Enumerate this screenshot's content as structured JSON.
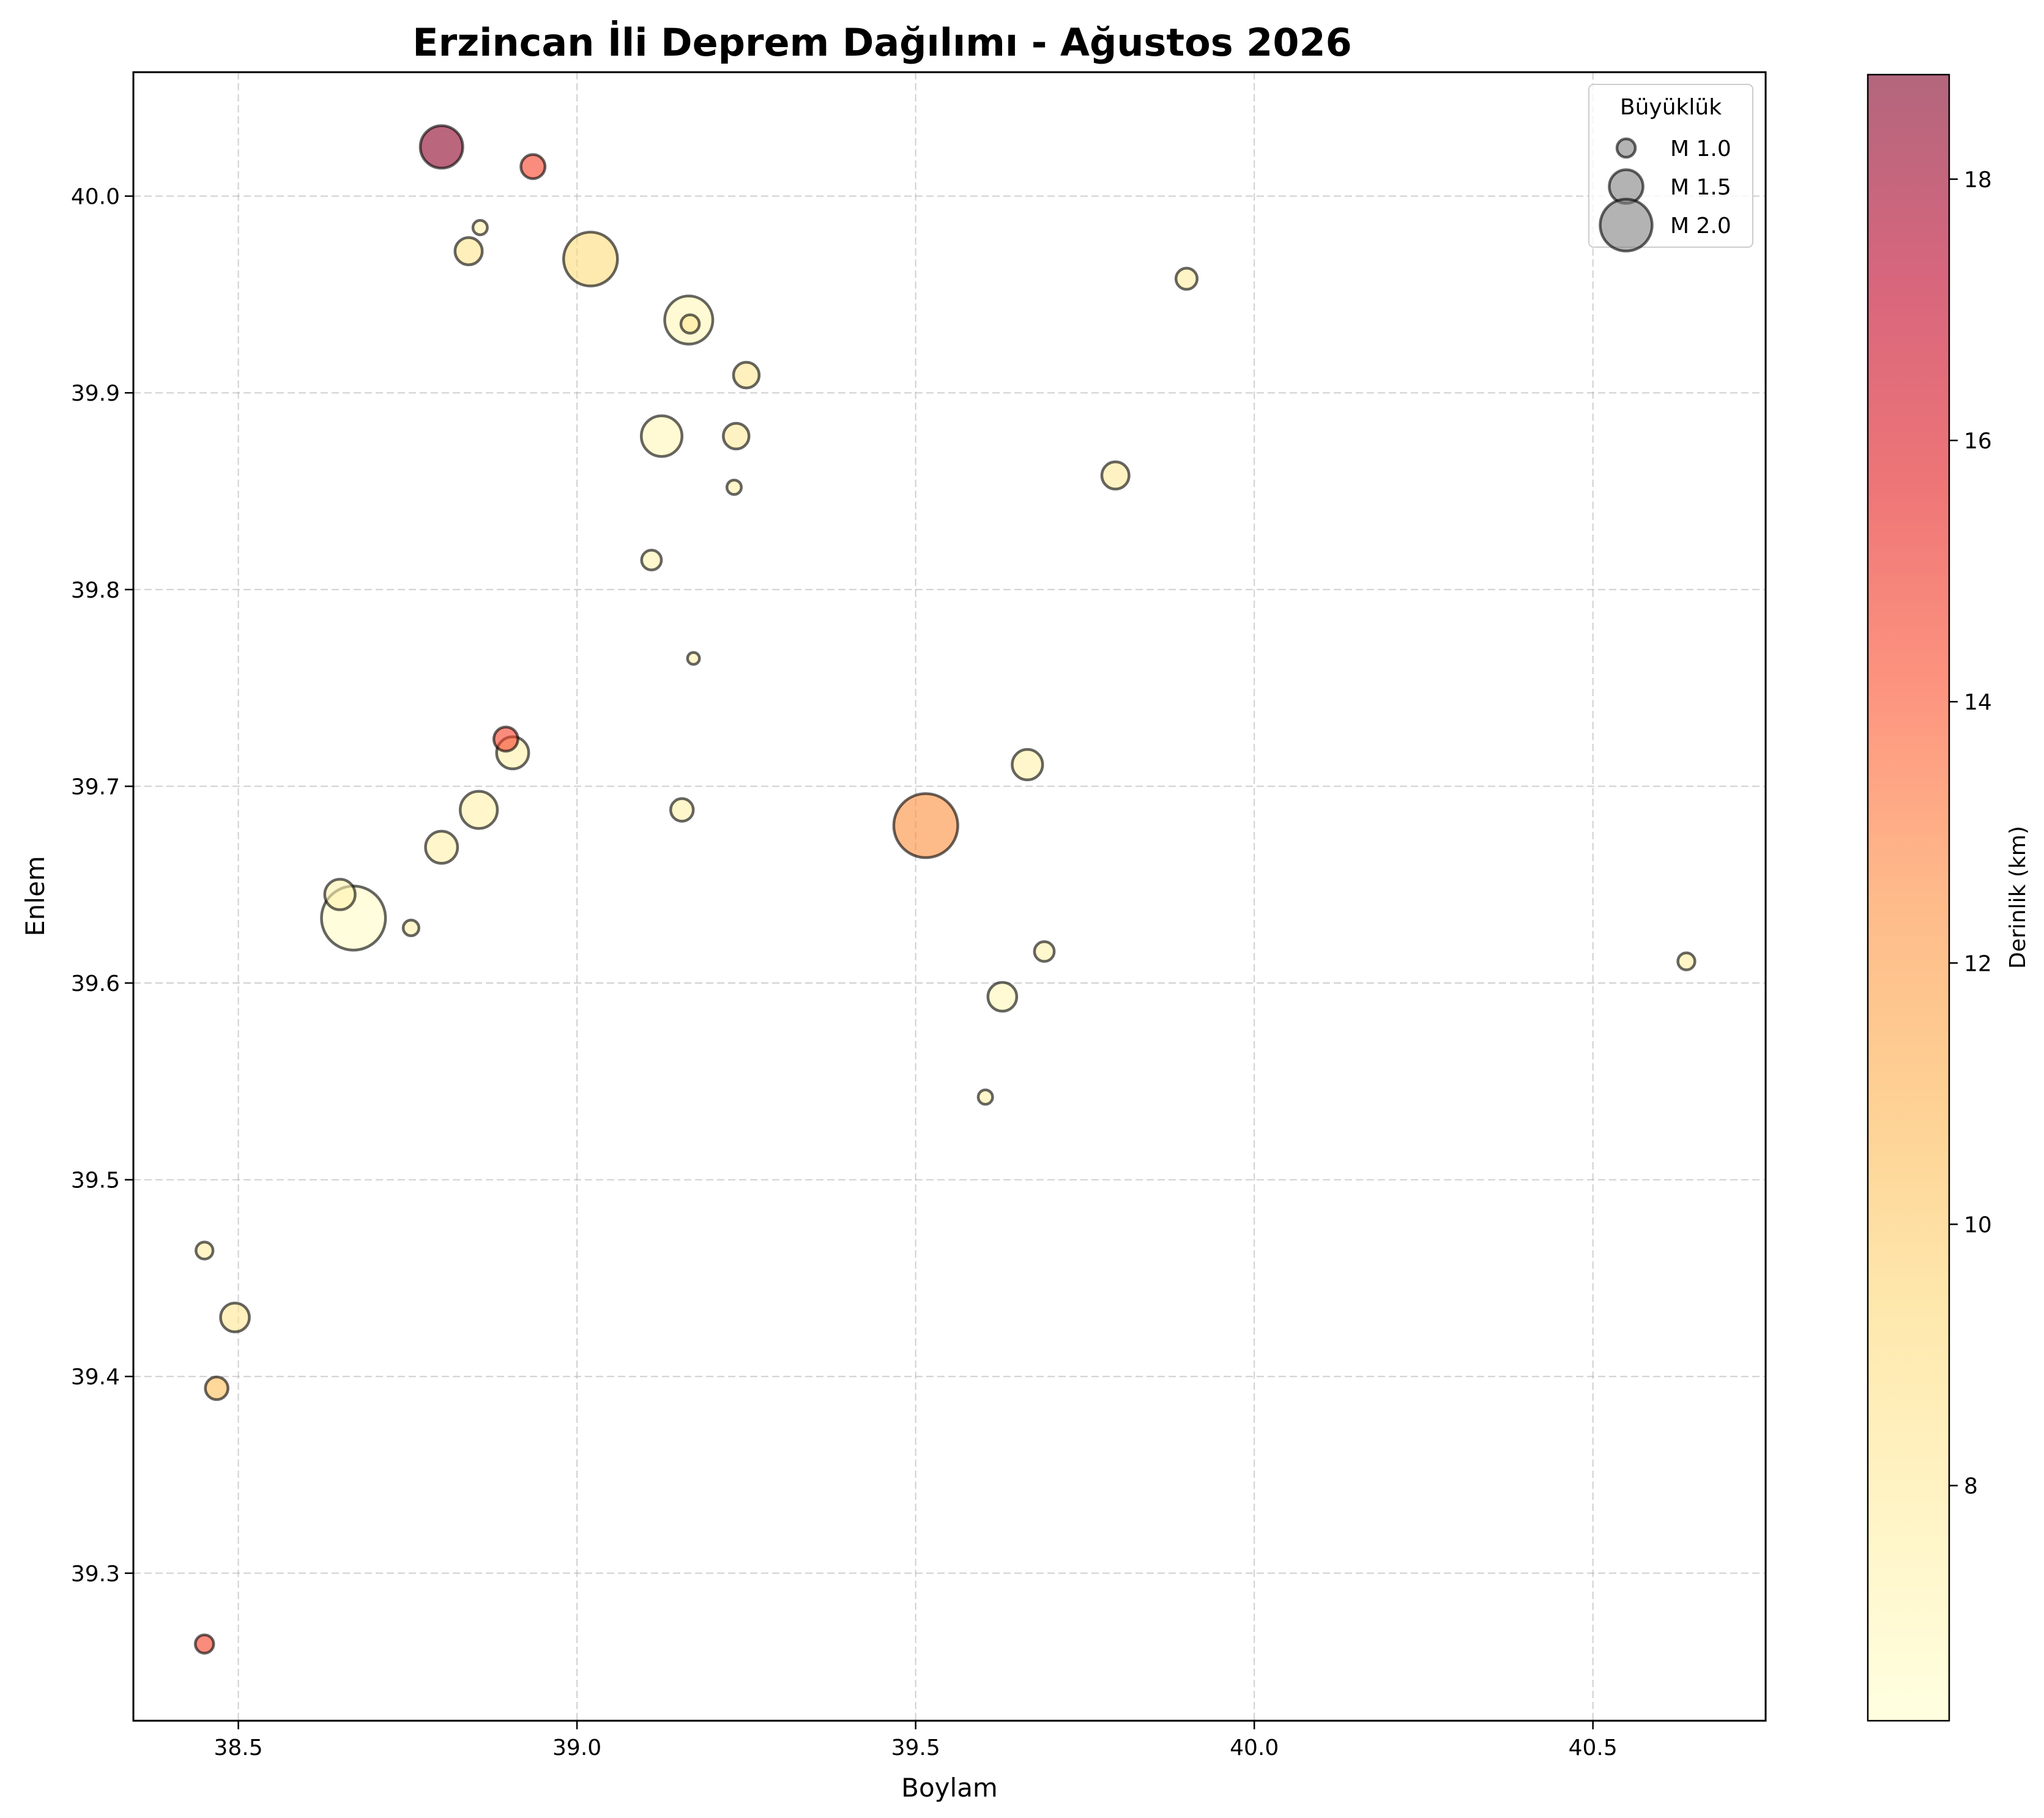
{
  "chart_data": {
    "type": "scatter",
    "title": "Erzincan İli Deprem Dağılımı - Ağustos 2026",
    "xlabel": "Boylam",
    "ylabel": "Enlem",
    "xlim": [
      38.345,
      40.755
    ],
    "ylim": [
      39.225,
      40.063
    ],
    "xticks": [
      38.5,
      39.0,
      39.5,
      40.0,
      40.5
    ],
    "yticks": [
      39.3,
      39.4,
      39.5,
      39.6,
      39.7,
      39.8,
      39.9,
      40.0
    ],
    "xtick_labels": [
      "38.5",
      "39.0",
      "39.5",
      "40.0",
      "40.5"
    ],
    "ytick_labels": [
      "39.3",
      "39.4",
      "39.5",
      "39.6",
      "39.7",
      "39.8",
      "39.9",
      "40.0"
    ],
    "grid": true,
    "legend": {
      "title": "Büyüklük",
      "placement": "top-right",
      "entries": [
        {
          "label": "M 1.0",
          "magnitude": 1.0
        },
        {
          "label": "M 1.5",
          "magnitude": 1.5
        },
        {
          "label": "M 2.0",
          "magnitude": 2.0
        }
      ]
    },
    "colorbar": {
      "label": "Derinlik (km)",
      "range": [
        6.2,
        18.8
      ],
      "ticks": [
        8,
        10,
        12,
        14,
        16,
        18
      ],
      "tick_labels": [
        "8",
        "10",
        "12",
        "14",
        "16",
        "18"
      ],
      "colormap": [
        "#ffffcc",
        "#ffeda0",
        "#fed976",
        "#feb24c",
        "#fd8d3c",
        "#fc4e2a",
        "#e31a1c",
        "#bd0026",
        "#800026"
      ],
      "alpha": 0.6
    },
    "marker_edge_color": "#000000",
    "points": [
      {
        "lon": 38.8,
        "lat": 40.025,
        "mag": 1.75,
        "depth": 18.5
      },
      {
        "lon": 38.935,
        "lat": 40.015,
        "mag": 1.2,
        "depth": 14.5
      },
      {
        "lon": 38.857,
        "lat": 39.984,
        "mag": 0.85,
        "depth": 7.5
      },
      {
        "lon": 38.84,
        "lat": 39.972,
        "mag": 1.3,
        "depth": 8.5
      },
      {
        "lon": 39.02,
        "lat": 39.968,
        "mag": 2.05,
        "depth": 9.2
      },
      {
        "lon": 39.165,
        "lat": 39.937,
        "mag": 1.9,
        "depth": 7.0
      },
      {
        "lon": 39.167,
        "lat": 39.935,
        "mag": 1.0,
        "depth": 8.0
      },
      {
        "lon": 39.25,
        "lat": 39.909,
        "mag": 1.25,
        "depth": 8.3
      },
      {
        "lon": 39.9,
        "lat": 39.958,
        "mag": 1.1,
        "depth": 7.8
      },
      {
        "lon": 39.125,
        "lat": 39.878,
        "mag": 1.7,
        "depth": 7.0
      },
      {
        "lon": 39.235,
        "lat": 39.878,
        "mag": 1.25,
        "depth": 8.0
      },
      {
        "lon": 39.232,
        "lat": 39.852,
        "mag": 0.85,
        "depth": 7.5
      },
      {
        "lon": 39.795,
        "lat": 39.858,
        "mag": 1.3,
        "depth": 8.0
      },
      {
        "lon": 39.11,
        "lat": 39.815,
        "mag": 1.05,
        "depth": 7.3
      },
      {
        "lon": 39.172,
        "lat": 39.765,
        "mag": 0.75,
        "depth": 7.5
      },
      {
        "lon": 38.895,
        "lat": 39.724,
        "mag": 1.2,
        "depth": 14.5
      },
      {
        "lon": 38.905,
        "lat": 39.717,
        "mag": 1.45,
        "depth": 7.5
      },
      {
        "lon": 39.665,
        "lat": 39.711,
        "mag": 1.4,
        "depth": 7.5
      },
      {
        "lon": 38.855,
        "lat": 39.688,
        "mag": 1.6,
        "depth": 7.5
      },
      {
        "lon": 39.155,
        "lat": 39.688,
        "mag": 1.15,
        "depth": 7.5
      },
      {
        "lon": 39.515,
        "lat": 39.68,
        "mag": 2.3,
        "depth": 12.5
      },
      {
        "lon": 38.8,
        "lat": 39.669,
        "mag": 1.45,
        "depth": 7.5
      },
      {
        "lon": 38.65,
        "lat": 39.645,
        "mag": 1.4,
        "depth": 7.3
      },
      {
        "lon": 38.67,
        "lat": 39.633,
        "mag": 2.3,
        "depth": 6.5
      },
      {
        "lon": 38.755,
        "lat": 39.628,
        "mag": 0.9,
        "depth": 7.5
      },
      {
        "lon": 39.69,
        "lat": 39.616,
        "mag": 1.05,
        "depth": 7.3
      },
      {
        "lon": 40.638,
        "lat": 39.611,
        "mag": 0.95,
        "depth": 7.8
      },
      {
        "lon": 39.628,
        "lat": 39.593,
        "mag": 1.35,
        "depth": 7.0
      },
      {
        "lon": 39.603,
        "lat": 39.542,
        "mag": 0.85,
        "depth": 7.5
      },
      {
        "lon": 38.45,
        "lat": 39.464,
        "mag": 0.95,
        "depth": 7.8
      },
      {
        "lon": 38.495,
        "lat": 39.43,
        "mag": 1.35,
        "depth": 8.3
      },
      {
        "lon": 38.468,
        "lat": 39.394,
        "mag": 1.15,
        "depth": 10.5
      },
      {
        "lon": 38.45,
        "lat": 39.264,
        "mag": 1.0,
        "depth": 14.5
      }
    ]
  }
}
